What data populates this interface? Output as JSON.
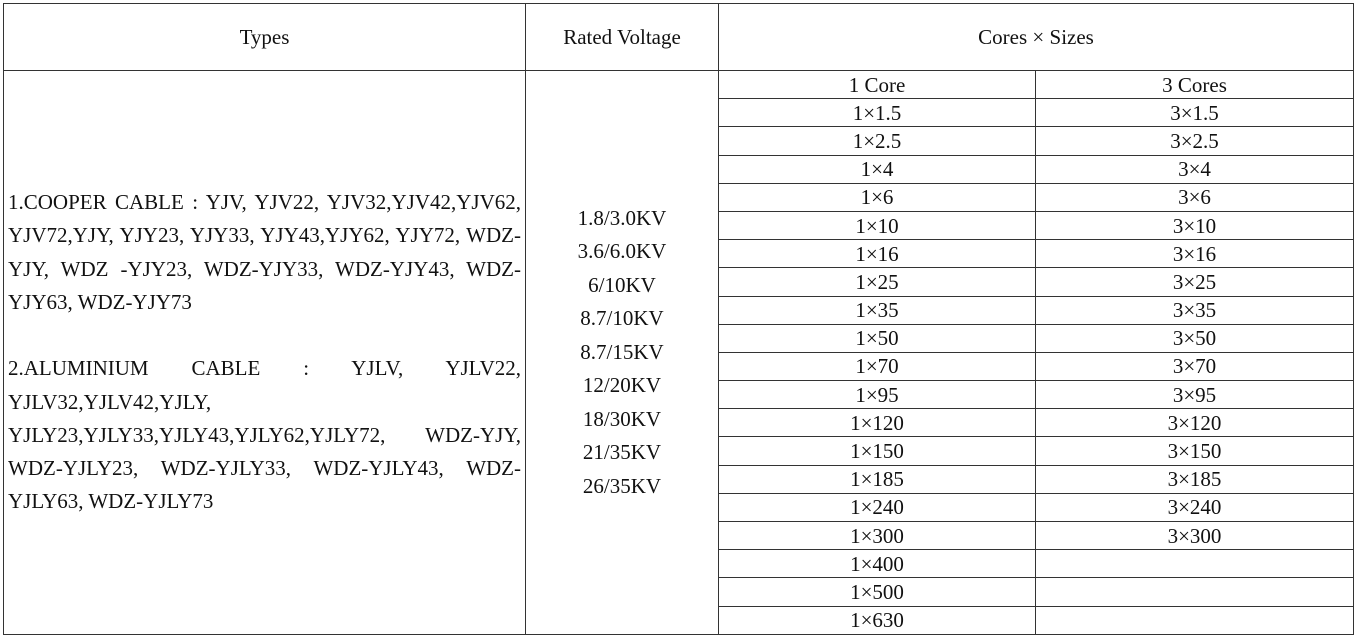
{
  "header": {
    "types": "Types",
    "voltage": "Rated Voltage",
    "cores": "Cores × Sizes"
  },
  "subheader": [
    "1 Core",
    "3 Cores"
  ],
  "types": [
    "1.COOPER CABLE : YJV, YJV22, YJV32,YJV42,YJV62, YJV72,YJY, YJY23, YJY33, YJY43,YJY62, YJY72, WDZ-YJY, WDZ -YJY23, WDZ-YJY33, WDZ-YJY43, WDZ-YJY63, WDZ-YJY73",
    "2.ALUMINIUM CABLE : YJLV, YJLV22, YJLV32,YJLV42,YJLY, YJLY23,YJLY33,YJLY43,YJLY62,YJLY72, WDZ-YJY, WDZ-YJLY23, WDZ-YJLY33, WDZ-YJLY43, WDZ-YJLY63, WDZ-YJLY73"
  ],
  "voltages": [
    "1.8/3.0KV",
    "3.6/6.0KV",
    "6/10KV",
    "8.7/10KV",
    "8.7/15KV",
    "12/20KV",
    "18/30KV",
    "21/35KV",
    "26/35KV"
  ],
  "rows": [
    [
      "1×1.5",
      "3×1.5"
    ],
    [
      "1×2.5",
      "3×2.5"
    ],
    [
      "1×4",
      "3×4"
    ],
    [
      "1×6",
      "3×6"
    ],
    [
      "1×10",
      "3×10"
    ],
    [
      "1×16",
      "3×16"
    ],
    [
      "1×25",
      "3×25"
    ],
    [
      "1×35",
      "3×35"
    ],
    [
      "1×50",
      "3×50"
    ],
    [
      "1×70",
      "3×70"
    ],
    [
      "1×95",
      "3×95"
    ],
    [
      "1×120",
      "3×120"
    ],
    [
      "1×150",
      "3×150"
    ],
    [
      "1×185",
      "3×185"
    ],
    [
      "1×240",
      "3×240"
    ],
    [
      "1×300",
      "3×300"
    ],
    [
      "1×400"
    ],
    [
      "1×500"
    ],
    [
      "1×630"
    ]
  ]
}
